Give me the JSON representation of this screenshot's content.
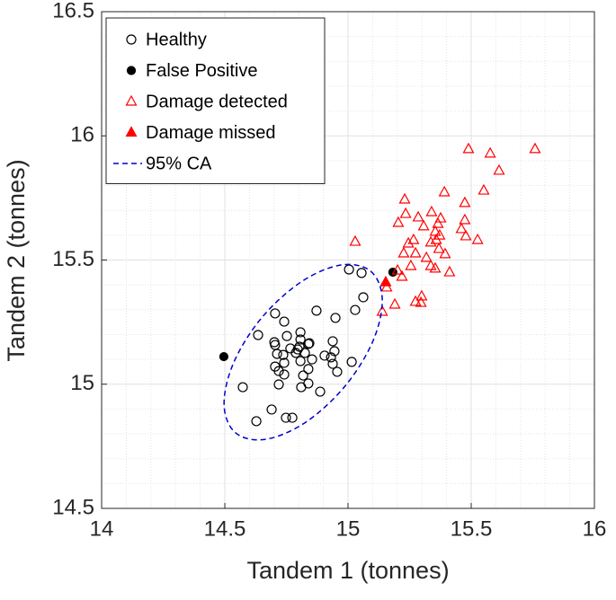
{
  "chart_data": {
    "type": "scatter",
    "xlabel": "Tandem 1 (tonnes)",
    "ylabel": "Tandem 2 (tonnes)",
    "xlim": [
      14,
      16
    ],
    "ylim": [
      14.5,
      16.5
    ],
    "xticks": [
      14,
      14.5,
      15,
      15.5,
      16
    ],
    "yticks": [
      14.5,
      15,
      15.5,
      16,
      16.5
    ],
    "grid": true,
    "minor_grid": true,
    "legend": "upper left",
    "series": [
      {
        "name": "Healthy",
        "color": "#000000",
        "marker": "circle-open",
        "x": [
          15.004,
          15.055,
          15.062,
          15.029,
          14.872,
          14.949,
          14.704,
          14.741,
          14.635,
          14.752,
          14.701,
          14.839,
          14.807,
          14.807,
          14.803,
          14.796,
          14.788,
          14.825,
          14.843,
          14.737,
          14.704,
          14.712,
          14.766,
          14.938,
          14.945,
          14.938,
          14.931,
          14.905,
          15.015,
          14.839,
          14.741,
          14.807,
          14.704,
          14.719,
          14.719,
          14.741,
          14.818,
          14.81,
          14.839,
          14.887,
          14.573,
          14.69,
          14.628,
          14.748,
          14.774,
          14.956,
          14.854
        ],
        "values": [
          15.462,
          15.448,
          15.35,
          15.299,
          15.296,
          15.267,
          15.285,
          15.252,
          15.198,
          15.194,
          15.169,
          15.162,
          15.209,
          15.18,
          15.151,
          15.14,
          15.126,
          15.126,
          15.165,
          15.118,
          15.158,
          15.122,
          15.144,
          15.173,
          15.133,
          15.082,
          15.108,
          15.115,
          15.09,
          15.061,
          15.086,
          15.093,
          15.071,
          15.053,
          14.999,
          15.039,
          15.035,
          14.988,
          15.003,
          14.97,
          14.988,
          14.898,
          14.851,
          14.865,
          14.865,
          15.05,
          15.1
        ]
      },
      {
        "name": "False Positive",
        "color": "#000000",
        "marker": "circle-filled",
        "x": [
          14.496,
          15.182
        ],
        "values": [
          15.111,
          15.451
        ]
      },
      {
        "name": "Damage detected",
        "color": "#ff0000",
        "marker": "triangle-open",
        "x": [
          15.759,
          15.577,
          15.489,
          15.613,
          15.551,
          15.391,
          15.474,
          15.23,
          15.234,
          15.204,
          15.339,
          15.285,
          15.376,
          15.307,
          15.365,
          15.474,
          15.354,
          15.372,
          15.358,
          15.266,
          15.336,
          15.245,
          15.274,
          15.226,
          15.478,
          15.526,
          15.46,
          15.369,
          15.318,
          15.394,
          15.336,
          15.255,
          15.354,
          15.201,
          15.219,
          15.412,
          15.029,
          15.157,
          15.274,
          15.299,
          15.296,
          15.19,
          15.139
        ],
        "values": [
          15.947,
          15.929,
          15.947,
          15.86,
          15.78,
          15.773,
          15.73,
          15.744,
          15.686,
          15.65,
          15.693,
          15.672,
          15.668,
          15.636,
          15.646,
          15.661,
          15.614,
          15.599,
          15.581,
          15.581,
          15.571,
          15.567,
          15.527,
          15.527,
          15.596,
          15.581,
          15.625,
          15.545,
          15.509,
          15.524,
          15.476,
          15.476,
          15.466,
          15.458,
          15.433,
          15.451,
          15.574,
          15.39,
          15.332,
          15.354,
          15.328,
          15.321,
          15.292
        ]
      },
      {
        "name": "Damage missed",
        "color": "#ff0000",
        "marker": "triangle-filled",
        "x": [
          15.153
        ],
        "values": [
          15.411
        ]
      },
      {
        "name": "95% CA",
        "color": "#0000cc",
        "marker": "dashed-line",
        "x": [
          15.092,
          15.139,
          15.1,
          14.986,
          14.827,
          14.665,
          14.544,
          14.497,
          14.536,
          14.65,
          14.81,
          14.971,
          15.092
        ],
        "values": [
          15.455,
          15.341,
          15.171,
          14.99,
          14.846,
          14.778,
          14.804,
          14.917,
          15.087,
          15.268,
          15.412,
          15.48,
          15.455
        ]
      }
    ]
  }
}
